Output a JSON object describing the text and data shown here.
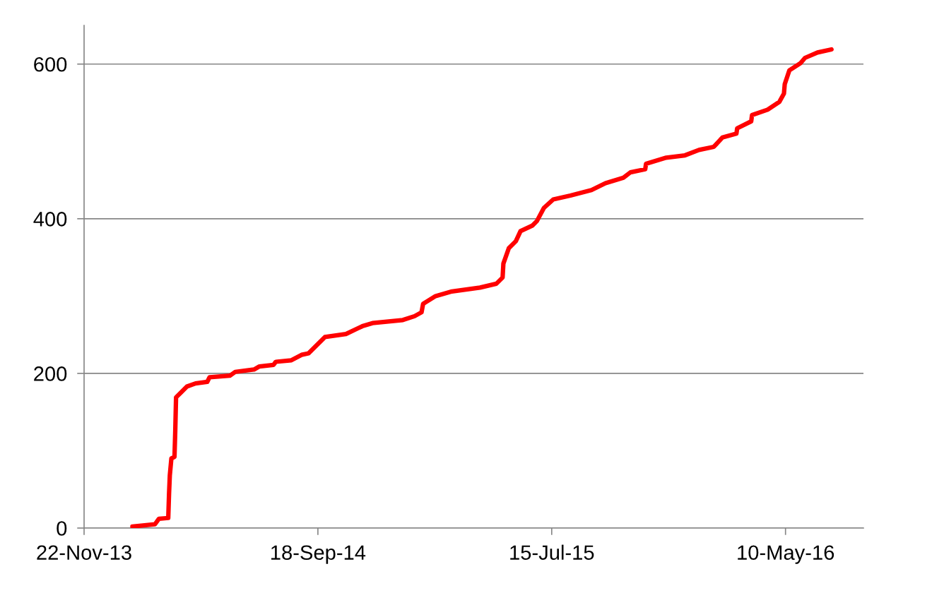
{
  "chart_data": {
    "type": "line",
    "x": [
      "2014-01-23",
      "2014-02-21",
      "2014-02-26",
      "2014-03-10",
      "2014-03-11",
      "2014-03-12",
      "2014-03-14",
      "2014-03-18",
      "2014-03-19",
      "2014-03-20",
      "2014-03-27",
      "2014-04-03",
      "2014-04-14",
      "2014-04-29",
      "2014-05-02",
      "2014-05-28",
      "2014-06-04",
      "2014-06-28",
      "2014-07-05",
      "2014-07-23",
      "2014-07-26",
      "2014-08-15",
      "2014-08-28",
      "2014-09-06",
      "2014-09-27",
      "2014-10-24",
      "2014-11-14",
      "2014-11-27",
      "2015-01-05",
      "2015-01-20",
      "2015-01-29",
      "2015-01-31",
      "2015-02-16",
      "2015-03-09",
      "2015-04-14",
      "2015-05-05",
      "2015-05-13",
      "2015-05-14",
      "2015-05-21",
      "2015-05-30",
      "2015-06-05",
      "2015-06-20",
      "2015-06-26",
      "2015-07-05",
      "2015-07-17",
      "2015-08-08",
      "2015-09-04",
      "2015-09-22",
      "2015-10-15",
      "2015-10-24",
      "2015-11-12",
      "2015-11-13",
      "2015-12-09",
      "2016-01-02",
      "2016-01-20",
      "2016-02-08",
      "2016-02-19",
      "2016-03-08",
      "2016-03-09",
      "2016-03-27",
      "2016-03-28",
      "2016-04-17",
      "2016-05-02",
      "2016-05-08",
      "2016-05-09",
      "2016-05-15",
      "2016-05-29",
      "2016-06-04",
      "2016-06-20",
      "2016-07-08"
    ],
    "series": [
      {
        "color": "#ff0000",
        "values": [
          2,
          5,
          12,
          13,
          44,
          68,
          90,
          92,
          126,
          169,
          176,
          183,
          187,
          189,
          195,
          197,
          202,
          205,
          209,
          211,
          215,
          217,
          224,
          226,
          247,
          251,
          261,
          265,
          269,
          274,
          279,
          290,
          300,
          306,
          311,
          316,
          324,
          342,
          362,
          371,
          384,
          391,
          397,
          414,
          425,
          430,
          437,
          446,
          453,
          460,
          464,
          471,
          479,
          482,
          489,
          493,
          505,
          510,
          517,
          526,
          534,
          541,
          551,
          562,
          574,
          592,
          601,
          608,
          615,
          619
        ]
      }
    ],
    "xlim": [
      "2013-11-22",
      "2016-08-18"
    ],
    "xticks": [
      {
        "value": "2013-11-22",
        "label": "22-Nov-13"
      },
      {
        "value": "2014-09-18",
        "label": "18-Sep-14"
      },
      {
        "value": "2015-07-15",
        "label": "15-Jul-15"
      },
      {
        "value": "2016-05-10",
        "label": "10-May-16"
      }
    ],
    "ylim": [
      0,
      650
    ],
    "yticks": [
      0,
      200,
      400,
      600
    ],
    "grid": "y",
    "legend": false,
    "marker": "none",
    "line_style": "solid"
  }
}
